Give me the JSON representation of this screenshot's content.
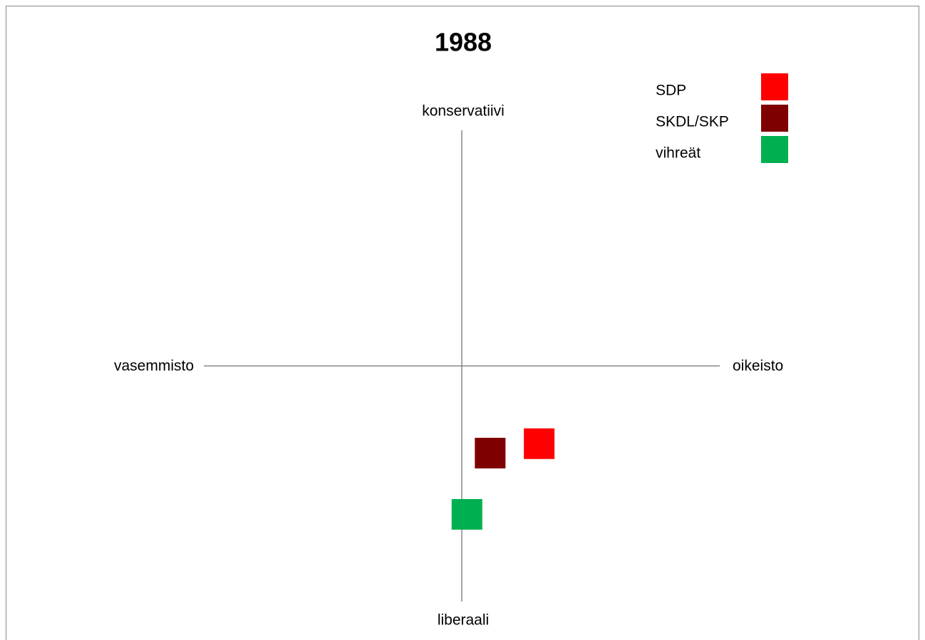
{
  "chart_data": {
    "type": "scatter",
    "title": "1988",
    "xlabel_left": "vasemmisto",
    "xlabel_right": "oikeisto",
    "ylabel_top": "konservatiivi",
    "ylabel_bottom": "liberaali",
    "xlim": [
      -10,
      10
    ],
    "ylim": [
      -10,
      10
    ],
    "legend": "top-right",
    "series": [
      {
        "name": "SDP",
        "color": "#ff0000",
        "x": [
          3.0
        ],
        "values": [
          -3.3
        ]
      },
      {
        "name": "SKDL/SKP",
        "color": "#7f0000",
        "x": [
          1.1
        ],
        "values": [
          -3.7
        ]
      },
      {
        "name": "vihreät",
        "color": "#00b050",
        "x": [
          0.2
        ],
        "values": [
          -6.3
        ]
      }
    ]
  }
}
